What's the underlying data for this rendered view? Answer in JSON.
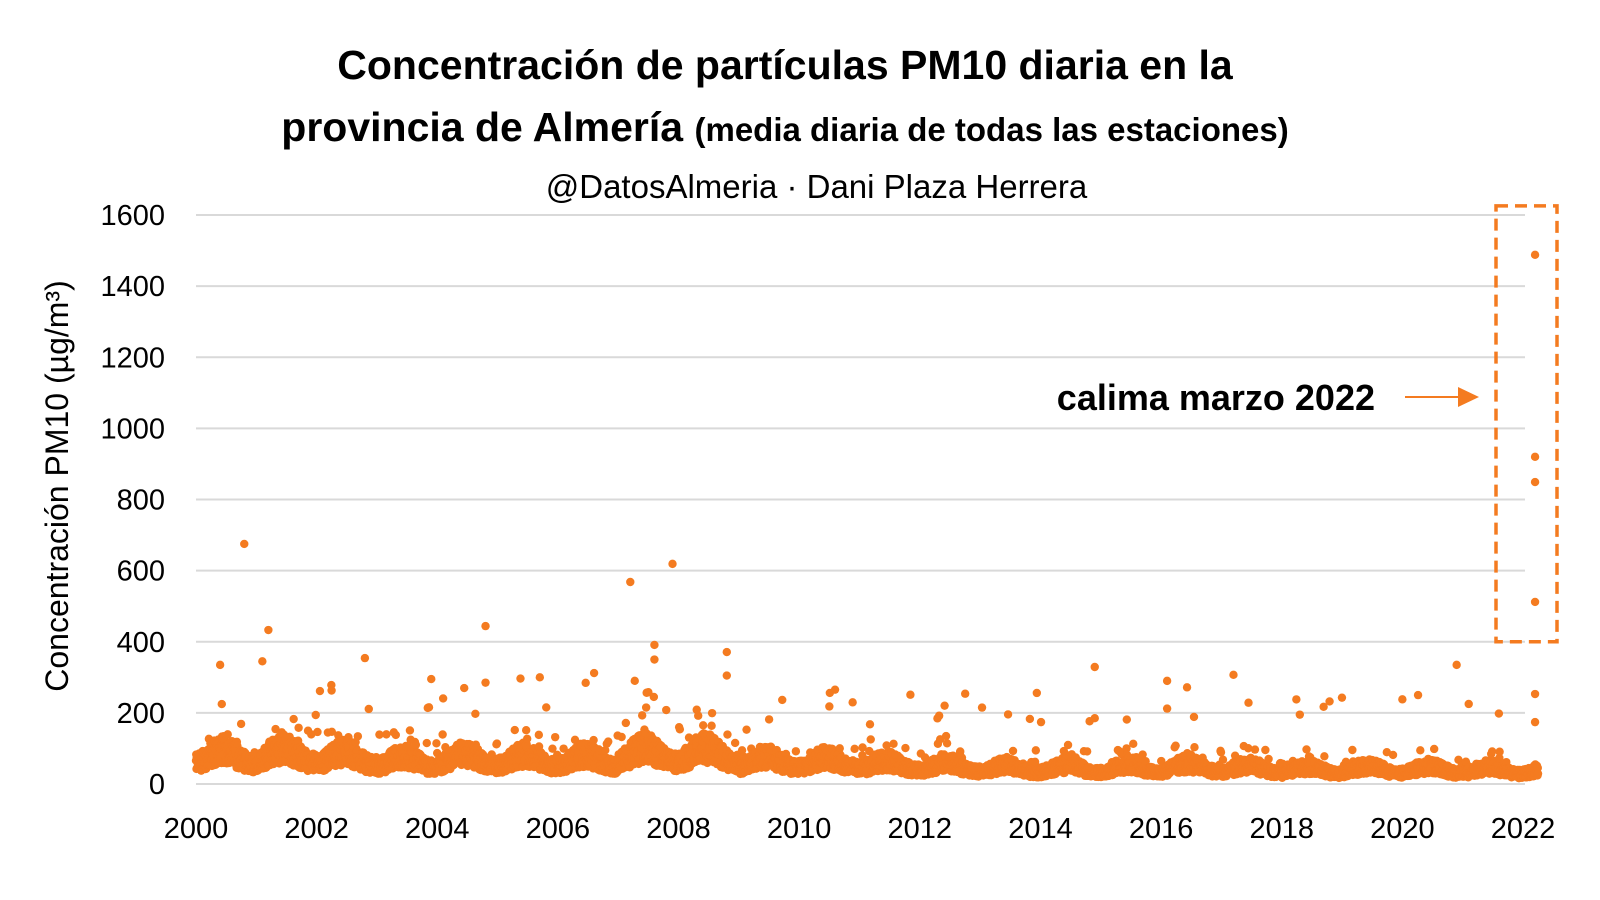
{
  "chart_data": {
    "type": "scatter",
    "title_line1": "Concentración de partículas PM10 diaria en la",
    "title_line2_main": "provincia de Almería",
    "title_line2_note": "(media diaria de todas las estaciones)",
    "subtitle": "@DatosAlmeria · Dani Plaza Herrera",
    "ylabel": "Concentración PM10 (µg/m³)",
    "xlabel": "",
    "xlim": [
      2000,
      2022.3
    ],
    "ylim": [
      0,
      1600
    ],
    "xticks": [
      "2000",
      "2002",
      "2004",
      "2006",
      "2008",
      "2010",
      "2012",
      "2014",
      "2016",
      "2018",
      "2020",
      "2022"
    ],
    "yticks": [
      "0",
      "200",
      "400",
      "600",
      "800",
      "1000",
      "1200",
      "1400",
      "1600"
    ],
    "grid": "horizontal",
    "color": "#f47b20",
    "annotation": {
      "text": "calima marzo 2022",
      "box_color": "#f47b20",
      "box_x_range": [
        2021.95,
        2022.3
      ],
      "box_y_range": [
        400,
        1620
      ]
    },
    "typical_daily_mean_by_year": {
      "2000": 80,
      "2001": 85,
      "2002": 75,
      "2003": 65,
      "2004": 70,
      "2005": 70,
      "2006": 68,
      "2007": 85,
      "2008": 85,
      "2009": 65,
      "2010": 62,
      "2011": 55,
      "2012": 50,
      "2013": 45,
      "2014": 45,
      "2015": 45,
      "2016": 48,
      "2017": 45,
      "2018": 40,
      "2019": 42,
      "2020": 42,
      "2021": 40,
      "2022": 40
    },
    "notable_points": [
      [
        2000.8,
        675
      ],
      [
        2001.2,
        433
      ],
      [
        2000.4,
        335
      ],
      [
        2001.1,
        345
      ],
      [
        2002.8,
        354
      ],
      [
        2003.9,
        295
      ],
      [
        2004.8,
        444
      ],
      [
        2004.8,
        285
      ],
      [
        2005.7,
        300
      ],
      [
        2006.6,
        312
      ],
      [
        2007.2,
        568
      ],
      [
        2007.5,
        258
      ],
      [
        2007.6,
        391
      ],
      [
        2007.6,
        350
      ],
      [
        2007.9,
        619
      ],
      [
        2008.8,
        371
      ],
      [
        2008.8,
        305
      ],
      [
        2010.5,
        218
      ],
      [
        2014.9,
        329
      ],
      [
        2014.9,
        185
      ],
      [
        2016.1,
        290
      ],
      [
        2016.1,
        212
      ],
      [
        2017.2,
        307
      ],
      [
        2018.3,
        195
      ],
      [
        2020.0,
        238
      ],
      [
        2020.9,
        335
      ],
      [
        2021.1,
        225
      ],
      [
        2021.6,
        198
      ],
      [
        2022.2,
        1488
      ],
      [
        2022.2,
        920
      ],
      [
        2022.2,
        849
      ],
      [
        2022.2,
        512
      ],
      [
        2022.2,
        253
      ],
      [
        2022.2,
        174
      ]
    ]
  }
}
